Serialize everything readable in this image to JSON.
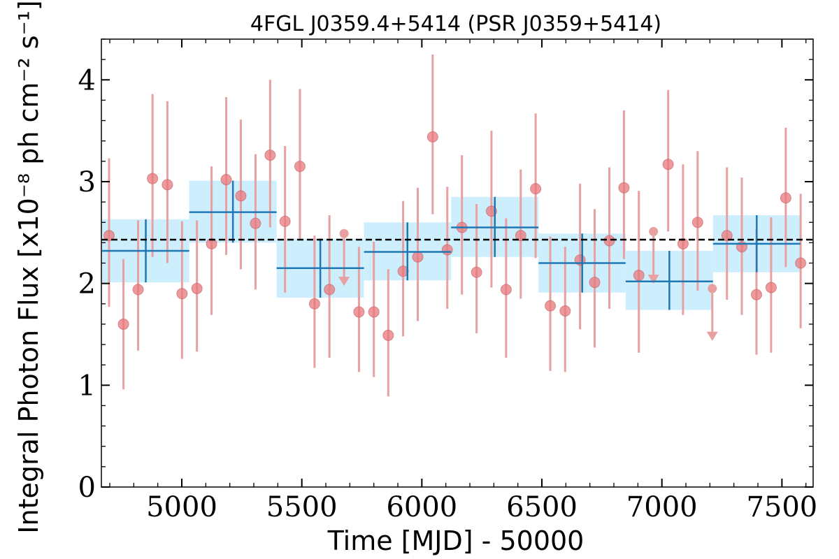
{
  "chart_data": {
    "type": "scatter",
    "title": "4FGL J0359.4+5414 (PSR J0359+5414)",
    "xlabel": "Time [MJD] - 50000",
    "ylabel": "Integral Photon Flux [x10⁻⁸ ph cm⁻² s⁻¹]",
    "xlim": [
      4665,
      7630
    ],
    "ylim": [
      0,
      4.4
    ],
    "xticks": [
      5000,
      5500,
      6000,
      6500,
      7000,
      7500
    ],
    "yticks": [
      0,
      1,
      2,
      3,
      4
    ],
    "xtick_labels": [
      "5000",
      "5500",
      "6000",
      "6500",
      "7000",
      "7500"
    ],
    "ytick_labels": [
      "0",
      "1",
      "2",
      "3",
      "4"
    ],
    "grid": false,
    "colors": {
      "points": "#e8787c",
      "errorbars": "#e8a0a0",
      "bins_fill": "#cdeefd",
      "bins_line": "#1f77b4",
      "mean_line": "#000000"
    },
    "mean_flux": 2.43,
    "series": [
      {
        "kind": "short-bin points",
        "points": [
          {
            "x": 4697,
            "y": 2.47,
            "lo": 1.77,
            "hi": 3.23
          },
          {
            "x": 4757,
            "y": 1.6,
            "lo": 0.96,
            "hi": 2.24
          },
          {
            "x": 4818,
            "y": 1.94,
            "lo": 1.34,
            "hi": 2.62
          },
          {
            "x": 4878,
            "y": 3.03,
            "lo": 2.26,
            "hi": 3.86
          },
          {
            "x": 4940,
            "y": 2.97,
            "lo": 2.2,
            "hi": 3.79
          },
          {
            "x": 5001,
            "y": 1.9,
            "lo": 1.26,
            "hi": 2.61
          },
          {
            "x": 5063,
            "y": 1.95,
            "lo": 1.33,
            "hi": 2.62
          },
          {
            "x": 5124,
            "y": 2.39,
            "lo": 1.69,
            "hi": 3.15
          },
          {
            "x": 5185,
            "y": 3.02,
            "lo": 2.28,
            "hi": 3.83
          },
          {
            "x": 5246,
            "y": 2.86,
            "lo": 2.14,
            "hi": 3.61
          },
          {
            "x": 5307,
            "y": 2.59,
            "lo": 1.94,
            "hi": 3.27
          },
          {
            "x": 5368,
            "y": 3.26,
            "lo": 2.55,
            "hi": 4.0
          },
          {
            "x": 5430,
            "y": 2.61,
            "lo": 1.91,
            "hi": 3.35
          },
          {
            "x": 5492,
            "y": 3.15,
            "lo": 2.43,
            "hi": 3.91
          },
          {
            "x": 5553,
            "y": 1.8,
            "lo": 1.17,
            "hi": 2.47
          },
          {
            "x": 5615,
            "y": 1.94,
            "lo": 1.27,
            "hi": 2.67
          },
          {
            "x": 5676,
            "y": 2.49,
            "lo": 1.99,
            "hi": 2.49,
            "upper_limit": true
          },
          {
            "x": 5738,
            "y": 1.72,
            "lo": 1.13,
            "hi": 2.36
          },
          {
            "x": 5800,
            "y": 1.72,
            "lo": 1.08,
            "hi": 2.41
          },
          {
            "x": 5860,
            "y": 1.49,
            "lo": 0.89,
            "hi": 2.14
          },
          {
            "x": 5922,
            "y": 2.12,
            "lo": 1.48,
            "hi": 2.81
          },
          {
            "x": 5983,
            "y": 2.26,
            "lo": 1.63,
            "hi": 2.94
          },
          {
            "x": 6045,
            "y": 3.44,
            "lo": 2.68,
            "hi": 4.25
          },
          {
            "x": 6106,
            "y": 2.33,
            "lo": 1.75,
            "hi": 2.95
          },
          {
            "x": 6167,
            "y": 2.55,
            "lo": 1.89,
            "hi": 3.26
          },
          {
            "x": 6228,
            "y": 2.11,
            "lo": 1.51,
            "hi": 2.78
          },
          {
            "x": 6290,
            "y": 2.71,
            "lo": 1.96,
            "hi": 3.5
          },
          {
            "x": 6351,
            "y": 1.94,
            "lo": 1.27,
            "hi": 2.64
          },
          {
            "x": 6412,
            "y": 2.47,
            "lo": 1.85,
            "hi": 3.12
          },
          {
            "x": 6474,
            "y": 2.93,
            "lo": 2.25,
            "hi": 3.67
          },
          {
            "x": 6535,
            "y": 1.78,
            "lo": 1.14,
            "hi": 2.46
          },
          {
            "x": 6597,
            "y": 1.73,
            "lo": 1.13,
            "hi": 2.36
          },
          {
            "x": 6659,
            "y": 2.23,
            "lo": 1.55,
            "hi": 2.98
          },
          {
            "x": 6720,
            "y": 2.01,
            "lo": 1.37,
            "hi": 2.73
          },
          {
            "x": 6781,
            "y": 2.42,
            "lo": 1.75,
            "hi": 3.14
          },
          {
            "x": 6842,
            "y": 2.94,
            "lo": 2.24,
            "hi": 3.7
          },
          {
            "x": 6904,
            "y": 2.08,
            "lo": 1.32,
            "hi": 2.91
          },
          {
            "x": 6965,
            "y": 2.51,
            "lo": 2.01,
            "hi": 2.51,
            "upper_limit": true
          },
          {
            "x": 7026,
            "y": 3.17,
            "lo": 2.51,
            "hi": 3.9
          },
          {
            "x": 7088,
            "y": 2.39,
            "lo": 1.69,
            "hi": 3.17
          },
          {
            "x": 7149,
            "y": 2.6,
            "lo": 1.93,
            "hi": 3.3
          },
          {
            "x": 7210,
            "y": 1.95,
            "lo": 1.45,
            "hi": 1.95,
            "upper_limit": true
          },
          {
            "x": 7271,
            "y": 2.47,
            "lo": 1.84,
            "hi": 3.14
          },
          {
            "x": 7333,
            "y": 2.36,
            "lo": 1.69,
            "hi": 3.04
          },
          {
            "x": 7394,
            "y": 1.89,
            "lo": 1.3,
            "hi": 2.53
          },
          {
            "x": 7455,
            "y": 1.96,
            "lo": 1.32,
            "hi": 2.65
          },
          {
            "x": 7516,
            "y": 2.84,
            "lo": 2.16,
            "hi": 3.53
          },
          {
            "x": 7578,
            "y": 2.2,
            "lo": 1.56,
            "hi": 2.88
          }
        ]
      },
      {
        "kind": "long-bin points",
        "points": [
          {
            "x": 4850,
            "x0": 4668,
            "x1": 5031,
            "y": 2.32,
            "lo": 2.01,
            "hi": 2.63
          },
          {
            "x": 5213,
            "x0": 5031,
            "x1": 5395,
            "y": 2.7,
            "lo": 2.4,
            "hi": 3.01
          },
          {
            "x": 5577,
            "x0": 5395,
            "x1": 5759,
            "y": 2.15,
            "lo": 1.86,
            "hi": 2.44
          },
          {
            "x": 5940,
            "x0": 5759,
            "x1": 6122,
            "y": 2.31,
            "lo": 2.03,
            "hi": 2.6
          },
          {
            "x": 6304,
            "x0": 6122,
            "x1": 6486,
            "y": 2.55,
            "lo": 2.26,
            "hi": 2.85
          },
          {
            "x": 6668,
            "x0": 6486,
            "x1": 6849,
            "y": 2.2,
            "lo": 1.91,
            "hi": 2.49
          },
          {
            "x": 7031,
            "x0": 6849,
            "x1": 7213,
            "y": 2.02,
            "lo": 1.74,
            "hi": 2.32
          },
          {
            "x": 7395,
            "x0": 7213,
            "x1": 7577,
            "y": 2.39,
            "lo": 2.11,
            "hi": 2.67
          }
        ]
      }
    ]
  }
}
